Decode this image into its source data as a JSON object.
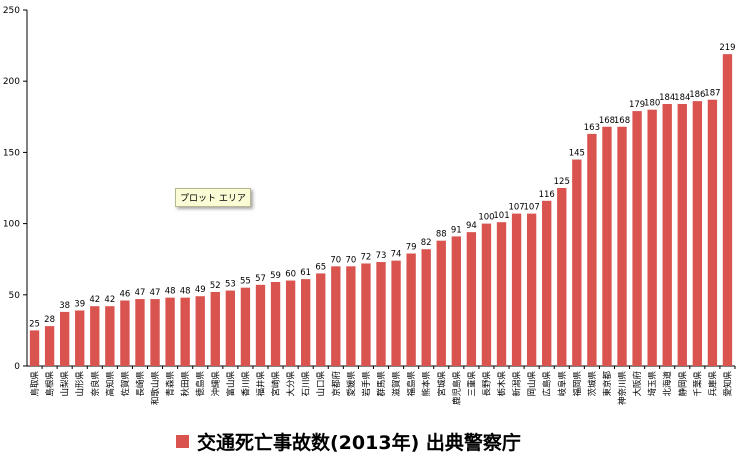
{
  "chart_data": {
    "type": "bar",
    "categories": [
      "鳥取県",
      "島根県",
      "山梨県",
      "山形県",
      "奈良県",
      "高知県",
      "佐賀県",
      "長崎県",
      "和歌山県",
      "青森県",
      "秋田県",
      "徳島県",
      "沖縄県",
      "富山県",
      "香川県",
      "福井県",
      "宮崎県",
      "大分県",
      "石川県",
      "山口県",
      "京都府",
      "愛媛県",
      "岩手県",
      "群馬県",
      "滋賀県",
      "福島県",
      "熊本県",
      "宮城県",
      "鹿児島県",
      "三重県",
      "長野県",
      "栃木県",
      "新潟県",
      "岡山県",
      "広島県",
      "岐阜県",
      "福岡県",
      "茨城県",
      "東京都",
      "神奈川県",
      "大阪府",
      "埼玉県",
      "北海道",
      "静岡県",
      "千葉県",
      "兵庫県",
      "愛知県"
    ],
    "series": [
      {
        "name": "交通死亡事故数(2013年) 出典警察庁",
        "values": [
          25,
          28,
          38,
          39,
          42,
          42,
          46,
          47,
          47,
          48,
          48,
          49,
          52,
          53,
          55,
          57,
          59,
          60,
          61,
          65,
          70,
          70,
          72,
          73,
          74,
          79,
          82,
          88,
          91,
          94,
          100,
          101,
          107,
          107,
          116,
          125,
          145,
          163,
          168,
          168,
          179,
          180,
          184,
          184,
          186,
          187,
          219
        ],
        "color": "#d9534f"
      }
    ],
    "yticks": [
      0,
      50,
      100,
      150,
      200,
      250
    ],
    "ylim": [
      0,
      250
    ],
    "grid": false,
    "legend_position": "bottom"
  },
  "tooltip": "プロット エリア",
  "legend": {
    "label": "交通死亡事故数(2013年) 出典警察庁"
  }
}
